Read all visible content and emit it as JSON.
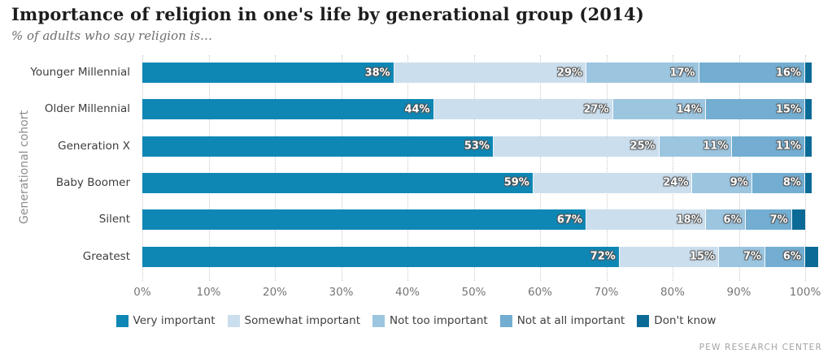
{
  "title": "Importance of religion in one's life by generational group (2014)",
  "subtitle": "% of adults who say religion is…",
  "source": "PEW RESEARCH CENTER",
  "chart_data": {
    "type": "bar",
    "orientation": "horizontal",
    "stacked": true,
    "title": "Importance of religion in one's life by generational group (2014)",
    "subtitle": "% of adults who say religion is…",
    "ylabel": "Generational cohort",
    "xlabel": "",
    "xlim": [
      0,
      100
    ],
    "x_ticks": [
      "0%",
      "10%",
      "20%",
      "30%",
      "40%",
      "50%",
      "60%",
      "70%",
      "80%",
      "90%",
      "100%"
    ],
    "grid": "vertical-dotted",
    "legend_position": "bottom",
    "categories": [
      "Younger Millennial",
      "Older Millennial",
      "Generation X",
      "Baby Boomer",
      "Silent",
      "Greatest"
    ],
    "series": [
      {
        "name": "Very important",
        "color": "#0f87b5",
        "labels_visible": true,
        "values": [
          38,
          44,
          53,
          59,
          67,
          72
        ]
      },
      {
        "name": "Somewhat important",
        "color": "#cbdeed",
        "labels_visible": true,
        "values": [
          29,
          27,
          25,
          24,
          18,
          15
        ]
      },
      {
        "name": "Not too important",
        "color": "#9cc5e0",
        "labels_visible": true,
        "values": [
          17,
          14,
          11,
          9,
          6,
          7
        ]
      },
      {
        "name": "Not at all important",
        "color": "#73aed2",
        "labels_visible": true,
        "values": [
          16,
          15,
          11,
          8,
          7,
          6
        ]
      },
      {
        "name": "Don't know",
        "color": "#0c6b96",
        "labels_visible": false,
        "values": [
          1,
          1,
          1,
          1,
          2,
          2
        ]
      }
    ]
  }
}
